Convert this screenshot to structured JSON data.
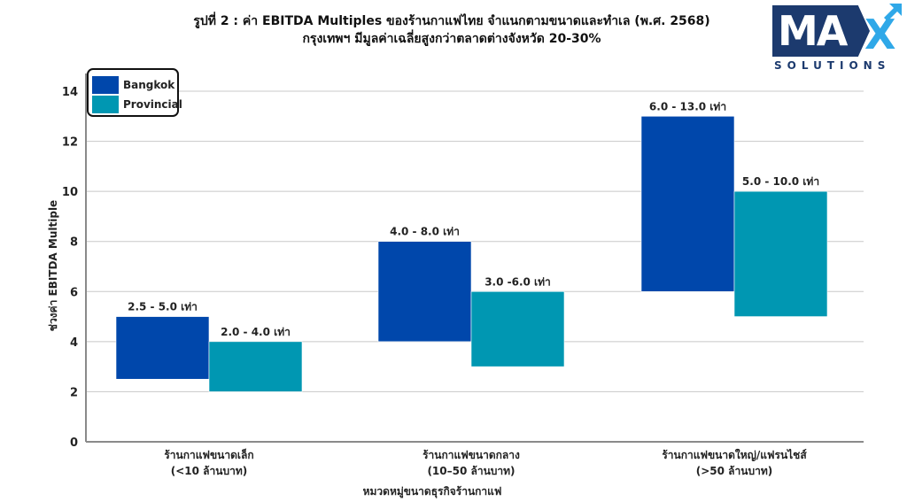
{
  "header": {
    "title_line1": "รูปที่ 2 : ค่า EBITDA Multiples ของร้านกาแฟไทย จำแนกตามขนาดและทำเล (พ.ศ. 2568)",
    "title_line2": "กรุงเทพฯ มีมูลค่าเฉลี่ยสูงกว่าตลาดต่างจังหวัด 20-30%"
  },
  "logo": {
    "main_text": "MA",
    "accent_text": "X",
    "sub_text": "SOLUTIONS",
    "icon": "arrow-up-right-icon",
    "colors": {
      "primary": "#1c3a6e",
      "accent": "#2fa8e8"
    }
  },
  "chart_data": {
    "type": "bar",
    "subtype": "floating-range",
    "title": "รูปที่ 2 : ค่า EBITDA Multiples ของร้านกาแฟไทย จำแนกตามขนาดและทำเล (พ.ศ. 2568)",
    "subtitle": "กรุงเทพฯ มีมูลค่าเฉลี่ยสูงกว่าตลาดต่างจังหวัด 20-30%",
    "xlabel": "หมวดหมู่ขนาดธุรกิจร้านกาแฟ",
    "ylabel": "ช่วงค่า EBITDA Multiple",
    "ylim": [
      0,
      14
    ],
    "yticks": [
      0,
      2,
      4,
      6,
      8,
      10,
      12,
      14
    ],
    "grid": true,
    "legend_position": "top-left",
    "categories": [
      {
        "line1": "ร้านกาแฟขนาดเล็ก",
        "line2": "(<10 ล้านบาท)"
      },
      {
        "line1": "ร้านกาแฟขนาดกลาง",
        "line2": "(10–50 ล้านบาท)"
      },
      {
        "line1": "ร้านกาแฟขนาดใหญ่/แฟรนไชส์",
        "line2": "(>50 ล้านบาท)"
      }
    ],
    "series": [
      {
        "name": "Bangkok",
        "color": "#0047ab",
        "ranges": [
          [
            2.5,
            5.0
          ],
          [
            4.0,
            8.0
          ],
          [
            6.0,
            13.0
          ]
        ],
        "labels": [
          "2.5 - 5.0 เท่า",
          "4.0  - 8.0  เท่า",
          "6.0 - 13.0  เท่า"
        ]
      },
      {
        "name": "Provincial",
        "color": "#0097b2",
        "ranges": [
          [
            2.0,
            4.0
          ],
          [
            3.0,
            6.0
          ],
          [
            5.0,
            10.0
          ]
        ],
        "labels": [
          "2.0 - 4.0  เท่า",
          "3.0 -6.0  เท่า",
          "5.0 - 10.0  เท่า"
        ]
      }
    ]
  }
}
